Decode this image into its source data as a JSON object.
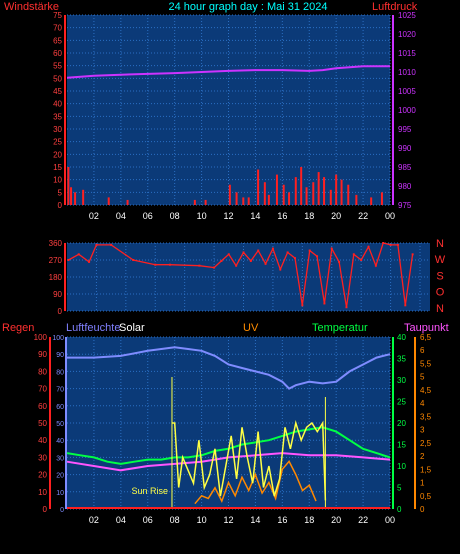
{
  "title": "24 hour graph day : Mai 31 2024",
  "colors": {
    "background": "#000000",
    "plot_bg": "#0b3a78",
    "grid": "#2b6fc3",
    "wind": "#ff2020",
    "pressure": "#cc33ff",
    "direction": "#ff2020",
    "humidity": "#7f8cff",
    "solar": "#ffff44",
    "uv": "#ff8800",
    "temperature": "#00ff44",
    "dewpoint": "#ff55ff",
    "rain": "#ff2020"
  },
  "chart_data": [
    {
      "type": "line",
      "name": "wind-pressure",
      "left_label": "Windstärke",
      "right_label": "Luftdruck",
      "x_ticks": [
        "02",
        "04",
        "06",
        "08",
        "10",
        "12",
        "14",
        "16",
        "18",
        "20",
        "22",
        "00"
      ],
      "y_left_ticks": [
        "0",
        "5",
        "10",
        "15",
        "20",
        "25",
        "30",
        "35",
        "40",
        "45",
        "50",
        "55",
        "60",
        "65",
        "70",
        "75"
      ],
      "y_left_lim": [
        0,
        75
      ],
      "y_right_ticks": [
        "975",
        "980",
        "985",
        "990",
        "995",
        "1000",
        "1005",
        "1010",
        "1015",
        "1020",
        "1025"
      ],
      "y_right_lim": [
        975,
        1025
      ],
      "pressure": {
        "x": [
          0,
          2,
          4,
          6,
          8,
          10,
          12,
          14,
          16,
          18,
          19,
          20,
          22,
          24
        ],
        "y": [
          1008.5,
          1009,
          1009.3,
          1009.5,
          1009.7,
          1010,
          1010.3,
          1010.5,
          1010.5,
          1010.3,
          1010.5,
          1011,
          1011.5,
          1011.5
        ]
      },
      "wind": {
        "x": [
          0.1,
          0.3,
          0.6,
          1.2,
          3.1,
          4.5,
          9.5,
          10.3,
          12.1,
          12.6,
          13.1,
          13.5,
          14.2,
          14.7,
          15.0,
          15.6,
          16.1,
          16.5,
          17.0,
          17.4,
          17.8,
          18.3,
          18.7,
          19.1,
          19.6,
          20.0,
          20.4,
          20.9,
          21.5,
          22.6,
          23.4
        ],
        "y": [
          15,
          7,
          5,
          6,
          3,
          2,
          2,
          2,
          8,
          5,
          3,
          3,
          14,
          9,
          4,
          12,
          8,
          5,
          11,
          15,
          7,
          9,
          13,
          11,
          6,
          12,
          10,
          8,
          4,
          3,
          5
        ]
      }
    },
    {
      "type": "scatter",
      "name": "wind-direction",
      "right_labels": [
        "N",
        "W",
        "S",
        "O",
        "N"
      ],
      "y_left_ticks": [
        "0",
        "90",
        "180",
        "270",
        "360"
      ],
      "y_lim": [
        0,
        360
      ],
      "x": [
        0.1,
        0.8,
        1.5,
        2.0,
        3.0,
        4.5,
        6.0,
        7.0,
        9.0,
        10.0,
        10.5,
        11.0,
        11.5,
        12.0,
        12.5,
        13.0,
        13.5,
        14.0,
        14.5,
        15.0,
        15.5,
        16.0,
        16.5,
        17.0,
        17.5,
        18.0,
        18.5,
        19.0,
        19.5,
        20.0,
        20.5,
        21.0,
        21.5,
        22.0,
        22.5,
        23.0,
        23.5
      ],
      "y": [
        270,
        300,
        260,
        350,
        350,
        270,
        245,
        245,
        240,
        230,
        265,
        300,
        240,
        310,
        265,
        320,
        250,
        330,
        220,
        310,
        280,
        30,
        320,
        290,
        40,
        330,
        260,
        20,
        300,
        270,
        340,
        240,
        360,
        350,
        350,
        30,
        300
      ]
    },
    {
      "type": "line",
      "name": "weather-multi",
      "labels": [
        "Regen",
        "Luftfeuchte",
        "Solar",
        "UV",
        "Temperatur",
        "Taupunkt"
      ],
      "annotation": "Sun Rise",
      "x_ticks": [
        "02",
        "04",
        "06",
        "08",
        "10",
        "12",
        "14",
        "16",
        "18",
        "20",
        "22",
        "00"
      ],
      "y_rain_ticks": [
        "0",
        "10",
        "20",
        "30",
        "40",
        "50",
        "60",
        "70",
        "80",
        "90",
        "100"
      ],
      "y_hum_ticks": [
        "0",
        "10",
        "20",
        "30",
        "40",
        "50",
        "60",
        "70",
        "80",
        "90",
        "100"
      ],
      "y_temp_ticks": [
        "0",
        "5",
        "10",
        "15",
        "20",
        "25",
        "30",
        "35",
        "40"
      ],
      "y_temp_lim": [
        0,
        40
      ],
      "y_uv_ticks": [
        "0",
        "0,5",
        "1",
        "1,5",
        "2",
        "2,5",
        "3",
        "3,5",
        "4",
        "4,5",
        "5",
        "5,5",
        "6",
        "6,5"
      ],
      "y_uv_lim": [
        0,
        6.5
      ],
      "humidity": {
        "x": [
          0,
          2,
          4,
          6,
          8,
          9,
          10,
          11,
          12,
          13,
          14,
          15,
          16,
          16.5,
          17,
          18,
          19,
          20,
          21,
          22,
          23,
          24
        ],
        "y": [
          88,
          88,
          89,
          92,
          94,
          93,
          92,
          89,
          84,
          82,
          80,
          78,
          74,
          70,
          72,
          74,
          73,
          74,
          80,
          84,
          88,
          90
        ]
      },
      "temperature": {
        "x": [
          0,
          1,
          2,
          3,
          4,
          5,
          6,
          7,
          8,
          9,
          10,
          11,
          12,
          13,
          14,
          15,
          16,
          17,
          18,
          19,
          20,
          21,
          22,
          23,
          24
        ],
        "y": [
          13,
          12.5,
          12,
          11,
          10.5,
          11,
          11.5,
          11.5,
          12,
          12,
          12.5,
          13.5,
          14,
          15,
          15.5,
          16,
          17,
          18,
          18.5,
          19,
          18,
          16,
          14,
          13,
          12
        ]
      },
      "dewpoint": {
        "x": [
          0,
          2,
          4,
          6,
          8,
          10,
          12,
          14,
          16,
          18,
          20,
          22,
          24
        ],
        "y": [
          11,
          10,
          9,
          10,
          10.5,
          11,
          12,
          12.5,
          13,
          12.5,
          12.5,
          12,
          11.5
        ]
      },
      "solar": {
        "x": [
          7.8,
          8.0,
          8.3,
          8.6,
          9.0,
          9.4,
          9.8,
          10.2,
          10.6,
          11.0,
          11.4,
          11.8,
          12.2,
          12.6,
          13.0,
          13.4,
          13.8,
          14.2,
          14.6,
          15.0,
          15.4,
          15.8,
          16.2,
          16.6,
          17.0,
          17.4,
          17.8,
          18.2,
          18.6,
          19.0,
          19.2
        ],
        "y": [
          20,
          20,
          5,
          12,
          9,
          6,
          16,
          5,
          8,
          14,
          3,
          10,
          17,
          7,
          19,
          12,
          6,
          18,
          5,
          10,
          3,
          7,
          19,
          14,
          20,
          16,
          19,
          20,
          18,
          20,
          2
        ]
      },
      "uv": {
        "x": [
          9.5,
          10,
          10.5,
          11,
          11.5,
          12,
          12.5,
          13,
          13.5,
          14,
          14.5,
          15,
          15.5,
          16,
          16.5,
          17,
          17.5,
          18,
          18.5
        ],
        "y": [
          0.2,
          0.5,
          0.4,
          0.8,
          0.3,
          1.0,
          0.5,
          1.2,
          0.7,
          1.3,
          0.6,
          1.0,
          0.4,
          1.5,
          1.8,
          1.3,
          0.7,
          0.9,
          0.3
        ]
      }
    }
  ]
}
